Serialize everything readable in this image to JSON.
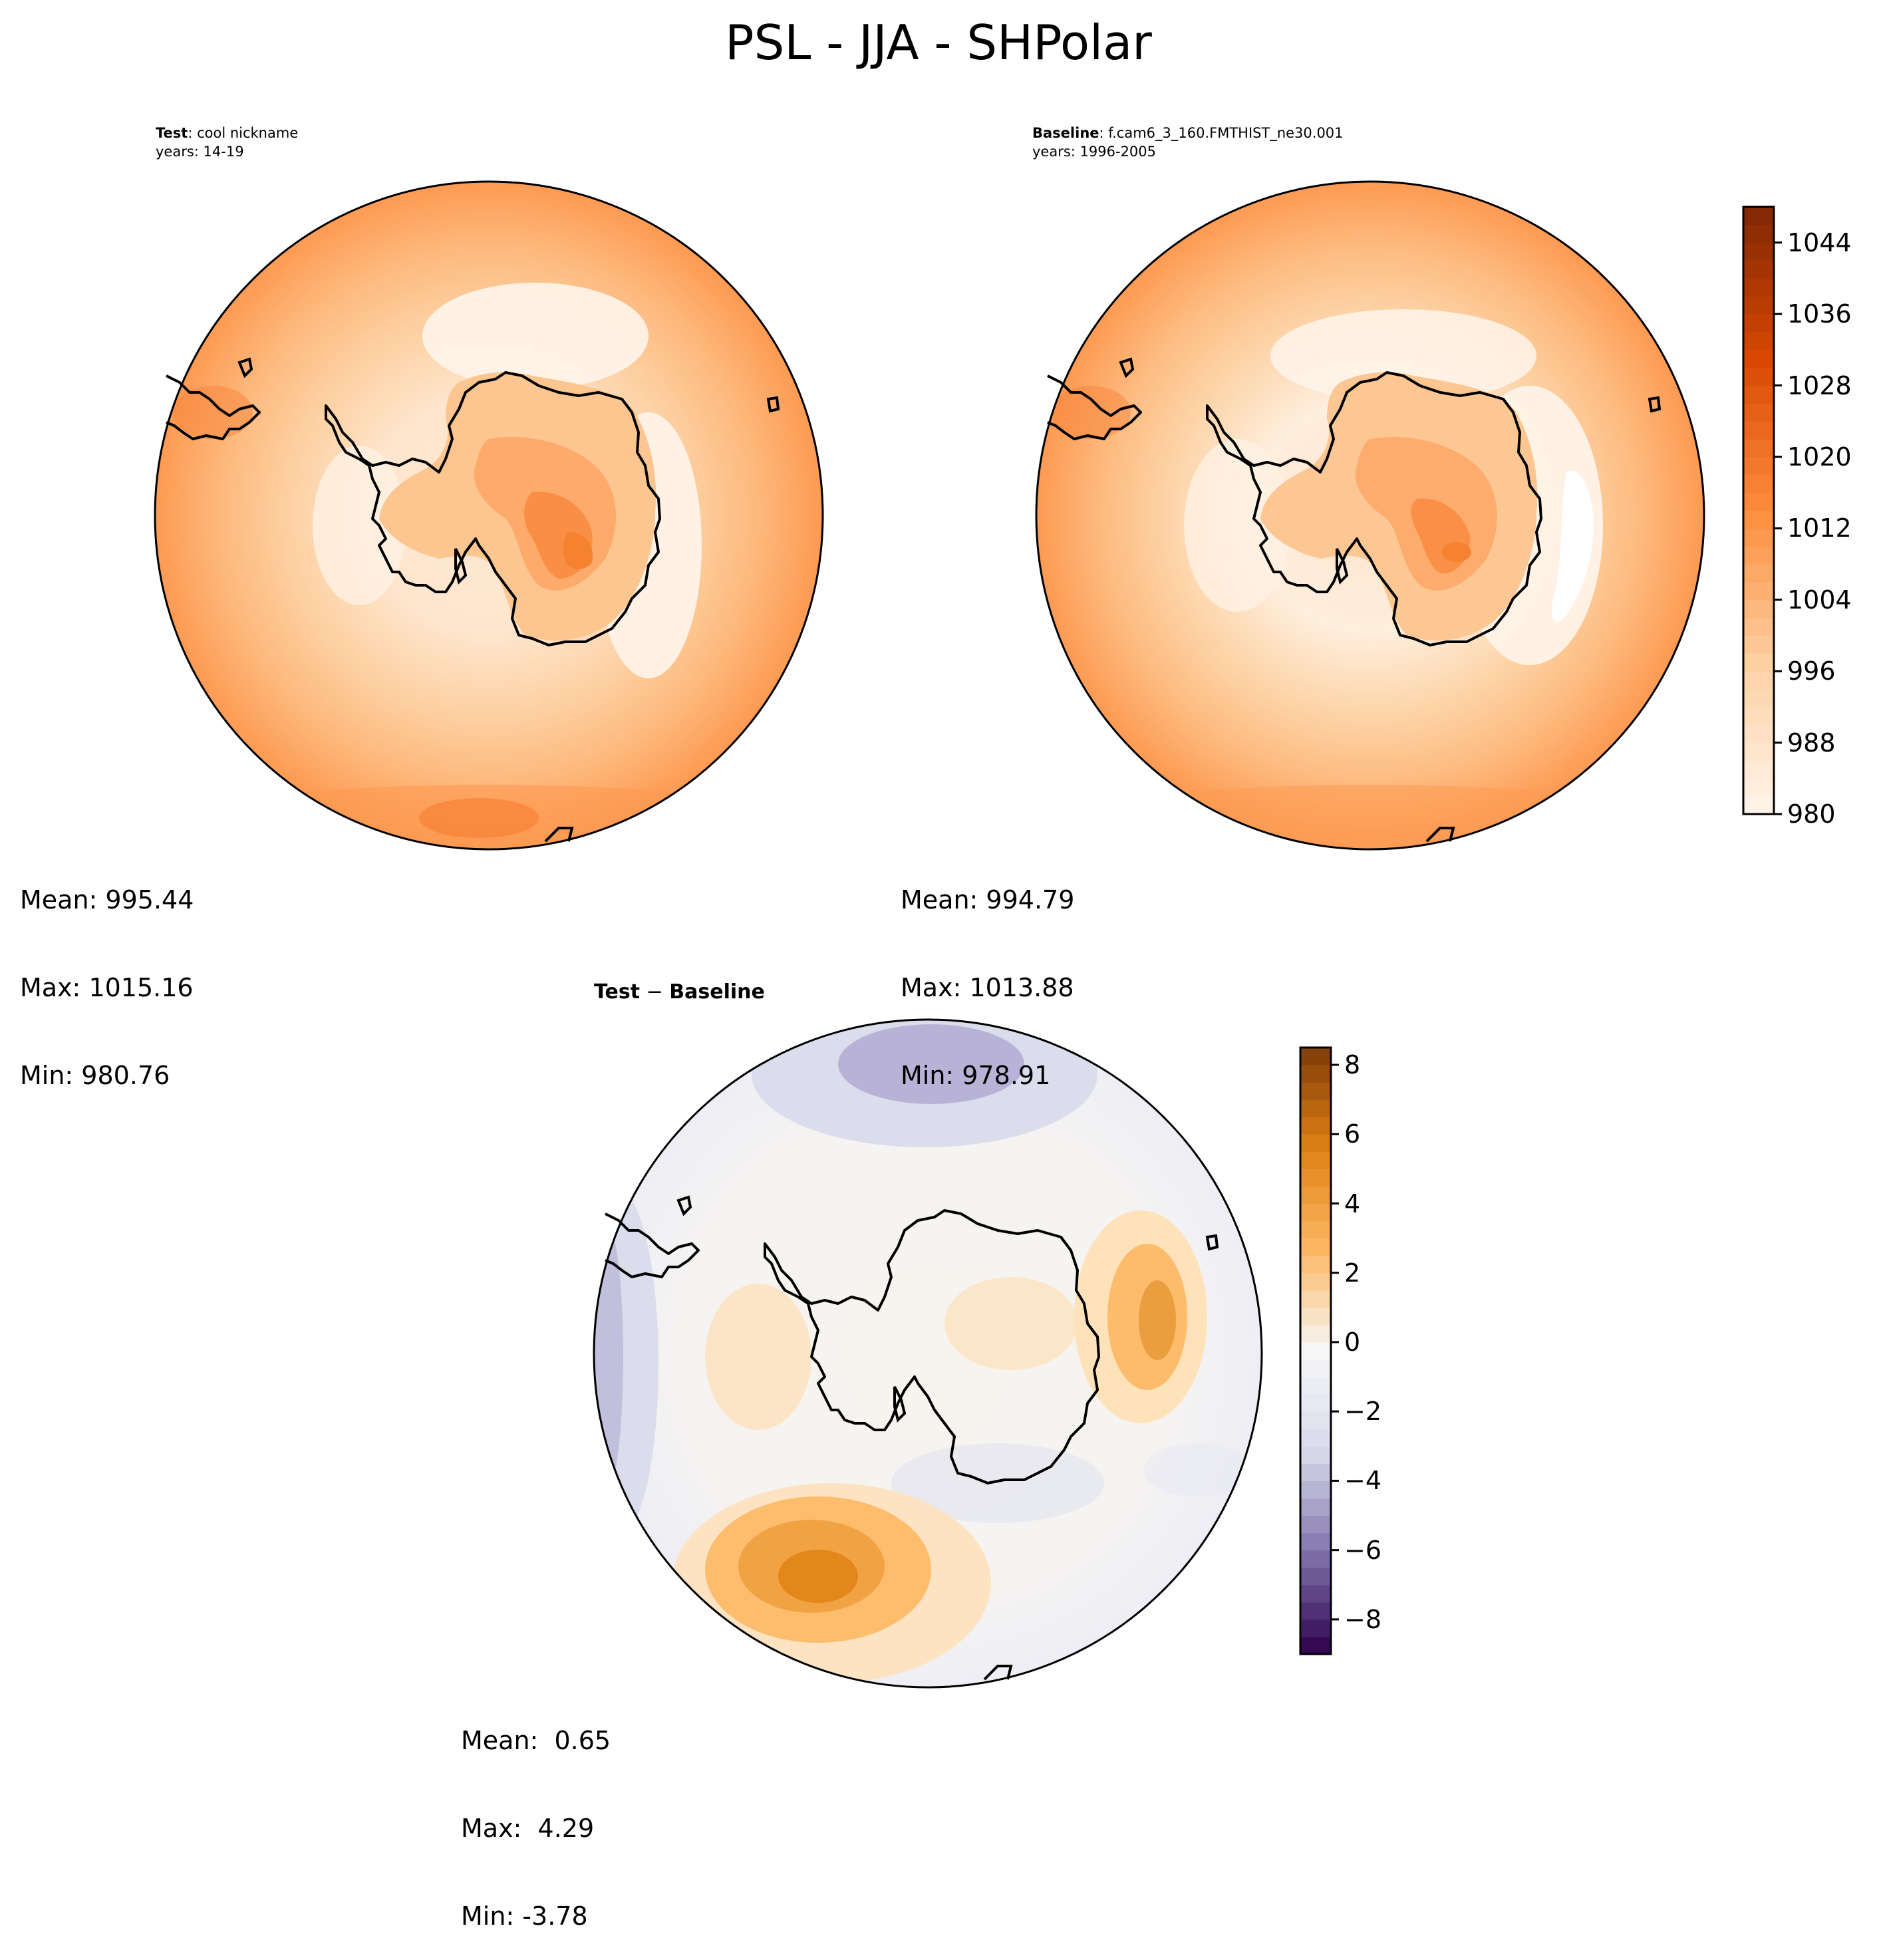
{
  "figure": {
    "title": "PSL - JJA - SHPolar"
  },
  "panels": {
    "test": {
      "label_bold": "Test",
      "label_rest": ": cool nickname",
      "years": "years: 14-19",
      "stats": {
        "mean": "Mean: 995.44",
        "max": "Max: 1015.16",
        "min": "Min: 980.76"
      }
    },
    "baseline": {
      "label_bold": "Baseline",
      "label_rest": ": f.cam6_3_160.FMTHIST_ne30.001",
      "years": "years: 1996-2005",
      "stats": {
        "mean": "Mean: 994.79",
        "max": "Max: 1013.88",
        "min": "Min: 978.91"
      }
    },
    "diff": {
      "label_a": "Test",
      "label_op": " − ",
      "label_b": "Baseline",
      "stats": {
        "mean": "Mean:  0.65",
        "max": "Max:  4.29",
        "min": "Min: -3.78"
      }
    }
  },
  "chart_data": [
    {
      "type": "heatmap",
      "name": "test",
      "projection": "south-polar-stereographic",
      "variable": "PSL",
      "season": "JJA",
      "mean": 995.44,
      "max": 1015.16,
      "min": 980.76,
      "colormap": "Oranges",
      "color_range": [
        980,
        1048
      ]
    },
    {
      "type": "heatmap",
      "name": "baseline",
      "projection": "south-polar-stereographic",
      "variable": "PSL",
      "season": "JJA",
      "mean": 994.79,
      "max": 1013.88,
      "min": 978.91,
      "colormap": "Oranges",
      "color_range": [
        980,
        1048
      ]
    },
    {
      "type": "heatmap",
      "name": "difference",
      "projection": "south-polar-stereographic",
      "mean": 0.65,
      "max": 4.29,
      "min": -3.78,
      "colormap": "PuOr_r",
      "color_range": [
        -9,
        8.5
      ]
    }
  ],
  "colorbars": {
    "main": {
      "ticks": [
        980,
        988,
        996,
        1004,
        1012,
        1020,
        1028,
        1036,
        1044
      ],
      "tick_labels": [
        "980",
        "988",
        "996",
        "1004",
        "1012",
        "1020",
        "1028",
        "1036",
        "1044"
      ],
      "range": [
        980,
        1048
      ],
      "levels": 34,
      "colors": [
        "#fff5eb",
        "#fdd0a2",
        "#fd8d3c",
        "#d94801",
        "#7f2704"
      ]
    },
    "diff": {
      "ticks": [
        -8,
        -6,
        -4,
        -2,
        0,
        2,
        4,
        6,
        8
      ],
      "tick_labels": [
        "−8",
        "−6",
        "−4",
        "−2",
        "0",
        "2",
        "4",
        "6",
        "8"
      ],
      "range": [
        -9,
        8.5
      ],
      "levels": 35,
      "colors": [
        "#2d004b",
        "#8073ac",
        "#d8daeb",
        "#f7f7f7",
        "#fdb863",
        "#e08214",
        "#7f3b08"
      ]
    }
  }
}
